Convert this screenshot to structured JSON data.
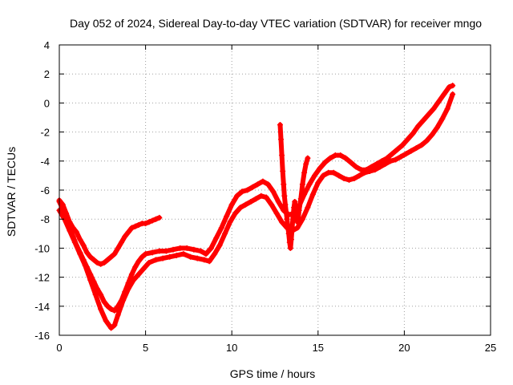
{
  "chart_data": {
    "type": "scatter",
    "title": "Day 052 of 2024, Sidereal Day-to-day VTEC variation (SDTVAR) for receiver mngo",
    "xlabel": "GPS time / hours",
    "ylabel": "SDTVAR / TECUs",
    "xlim": [
      0,
      25
    ],
    "ylim": [
      -16,
      4
    ],
    "xticks": [
      0,
      5,
      10,
      15,
      20,
      25
    ],
    "yticks": [
      -16,
      -14,
      -12,
      -10,
      -8,
      -6,
      -4,
      -2,
      0,
      2,
      4
    ],
    "grid": true,
    "legend": "none",
    "marker": "plus",
    "color": "#ff0000",
    "series": [
      {
        "x": [
          0.0,
          0.2,
          0.4,
          0.6,
          0.8,
          1.0,
          1.2,
          1.4,
          1.6,
          1.8,
          2.0,
          2.2,
          2.4,
          2.6,
          2.8,
          3.0,
          3.2,
          3.4,
          3.6,
          3.8,
          4.0,
          4.2,
          4.4,
          4.6,
          4.8,
          5.0,
          5.2,
          5.4,
          5.6,
          5.8
        ],
        "y": [
          -6.7,
          -7.0,
          -7.6,
          -8.2,
          -8.6,
          -8.9,
          -9.4,
          -9.8,
          -10.3,
          -10.6,
          -10.8,
          -11.0,
          -11.1,
          -11.0,
          -10.8,
          -10.6,
          -10.4,
          -10.0,
          -9.6,
          -9.2,
          -8.9,
          -8.6,
          -8.5,
          -8.4,
          -8.3,
          -8.3,
          -8.2,
          -8.1,
          -8.0,
          -7.9
        ]
      },
      {
        "x": [
          0.0,
          0.2,
          0.4,
          0.6,
          0.8,
          1.0,
          1.2,
          1.4,
          1.6,
          1.8,
          2.0,
          2.2,
          2.4,
          2.6,
          2.8,
          3.0,
          3.2,
          3.4,
          3.6,
          3.8,
          4.0,
          4.2,
          4.4,
          4.6,
          4.8,
          5.0,
          5.4,
          5.8,
          6.2,
          6.6,
          7.0,
          7.4,
          7.8,
          8.2,
          8.5,
          8.8,
          9.1,
          9.4,
          9.7,
          10.0,
          10.3,
          10.6,
          10.9,
          11.2,
          11.5,
          11.8,
          12.1,
          12.4,
          12.7,
          13.0,
          13.3,
          13.6,
          13.9,
          14.2,
          14.5,
          14.8,
          15.1,
          15.4,
          15.7,
          16.0,
          16.3,
          16.6,
          16.9,
          17.2,
          17.5,
          17.8,
          18.1,
          18.4,
          18.7,
          19.0,
          19.3,
          19.6,
          19.9,
          20.2,
          20.5,
          20.8,
          21.1,
          21.4,
          21.7,
          22.0,
          22.3,
          22.6,
          22.8
        ],
        "y": [
          -6.8,
          -7.3,
          -8.0,
          -8.6,
          -9.2,
          -9.8,
          -10.3,
          -10.8,
          -11.3,
          -11.8,
          -12.3,
          -12.8,
          -13.2,
          -13.7,
          -14.0,
          -14.2,
          -14.3,
          -14.0,
          -13.6,
          -13.0,
          -12.4,
          -11.8,
          -11.3,
          -10.9,
          -10.6,
          -10.4,
          -10.3,
          -10.2,
          -10.2,
          -10.1,
          -10.0,
          -10.0,
          -10.1,
          -10.2,
          -10.4,
          -10.0,
          -9.3,
          -8.6,
          -7.8,
          -7.0,
          -6.4,
          -6.1,
          -6.0,
          -5.8,
          -5.6,
          -5.4,
          -5.6,
          -6.1,
          -6.8,
          -7.4,
          -7.7,
          -7.6,
          -7.1,
          -6.3,
          -5.6,
          -5.0,
          -4.5,
          -4.1,
          -3.8,
          -3.6,
          -3.6,
          -3.8,
          -4.1,
          -4.4,
          -4.6,
          -4.6,
          -4.4,
          -4.2,
          -4.0,
          -3.8,
          -3.5,
          -3.2,
          -2.9,
          -2.5,
          -2.1,
          -1.6,
          -1.2,
          -0.8,
          -0.4,
          0.1,
          0.6,
          1.1,
          1.2
        ]
      },
      {
        "x": [
          0.0,
          0.3,
          0.6,
          0.9,
          1.2,
          1.5,
          1.8,
          2.1,
          2.4,
          2.7,
          3.0,
          3.2,
          3.4,
          3.7,
          4.0,
          4.3,
          4.6,
          4.9,
          5.2,
          5.6,
          6.0,
          6.4,
          6.8,
          7.2,
          7.6,
          8.0,
          8.4,
          8.7,
          9.0,
          9.3,
          9.6,
          9.9,
          10.2,
          10.5,
          10.8,
          11.1,
          11.4,
          11.7,
          12.0,
          12.3,
          12.6,
          12.9,
          13.2,
          13.5,
          13.8,
          14.1,
          14.4,
          14.7,
          15.0,
          15.3,
          15.6,
          15.9,
          16.2,
          16.5,
          16.8,
          17.1,
          17.4,
          17.7,
          18.0,
          18.3,
          18.6,
          18.9,
          19.2,
          19.5,
          19.8,
          20.1,
          20.4,
          20.7,
          21.0,
          21.3,
          21.6,
          21.9,
          22.2,
          22.5,
          22.8
        ],
        "y": [
          -7.4,
          -8.0,
          -8.8,
          -9.6,
          -10.4,
          -11.2,
          -12.2,
          -13.2,
          -14.2,
          -15.0,
          -15.5,
          -15.3,
          -14.6,
          -13.6,
          -12.8,
          -12.2,
          -11.8,
          -11.4,
          -11.0,
          -10.8,
          -10.7,
          -10.6,
          -10.5,
          -10.4,
          -10.6,
          -10.7,
          -10.8,
          -10.9,
          -10.4,
          -9.8,
          -9.0,
          -8.2,
          -7.6,
          -7.2,
          -7.0,
          -6.8,
          -6.6,
          -6.4,
          -6.5,
          -7.0,
          -7.6,
          -8.2,
          -8.6,
          -8.8,
          -8.6,
          -8.0,
          -7.2,
          -6.3,
          -5.5,
          -5.0,
          -4.8,
          -4.8,
          -5.0,
          -5.2,
          -5.3,
          -5.2,
          -5.0,
          -4.8,
          -4.7,
          -4.6,
          -4.4,
          -4.2,
          -4.0,
          -3.9,
          -3.7,
          -3.5,
          -3.3,
          -3.1,
          -2.9,
          -2.6,
          -2.2,
          -1.7,
          -1.1,
          -0.4,
          0.6
        ]
      },
      {
        "x": [
          12.8,
          12.85,
          12.9,
          12.95,
          13.0,
          13.05,
          13.1,
          13.15,
          13.2,
          13.25,
          13.3,
          13.35,
          13.4,
          13.45,
          13.5,
          13.55,
          13.6,
          13.65,
          13.7,
          13.75,
          13.8,
          13.85,
          13.9,
          14.0,
          14.1,
          14.2,
          14.3,
          14.4
        ],
        "y": [
          -1.5,
          -2.5,
          -3.6,
          -4.7,
          -5.6,
          -6.4,
          -7.0,
          -7.5,
          -8.0,
          -8.5,
          -9.0,
          -9.6,
          -10.0,
          -9.4,
          -8.6,
          -7.8,
          -7.2,
          -6.8,
          -7.2,
          -7.8,
          -8.2,
          -8.0,
          -7.4,
          -6.6,
          -5.6,
          -4.8,
          -4.2,
          -3.8
        ]
      }
    ]
  }
}
